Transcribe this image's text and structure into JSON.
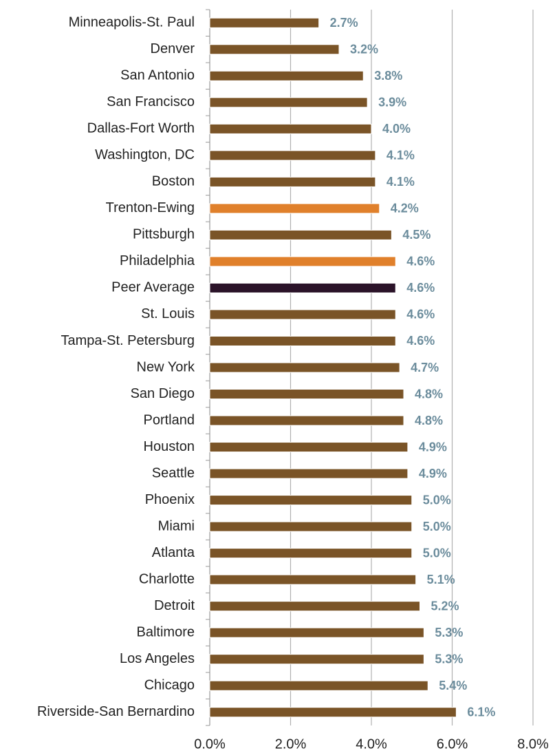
{
  "chart_data": {
    "type": "bar",
    "orientation": "horizontal",
    "categories": [
      "Minneapolis-St. Paul",
      "Denver",
      "San Antonio",
      "San Francisco",
      "Dallas-Fort Worth",
      "Washington, DC",
      "Boston",
      "Trenton-Ewing",
      "Pittsburgh",
      "Philadelphia",
      "Peer Average",
      "St. Louis",
      "Tampa-St. Petersburg",
      "New York",
      "San Diego",
      "Portland",
      "Houston",
      "Seattle",
      "Phoenix",
      "Miami",
      "Atlanta",
      "Charlotte",
      "Detroit",
      "Baltimore",
      "Los Angeles",
      "Chicago",
      "Riverside-San Bernardino"
    ],
    "values": [
      2.7,
      3.2,
      3.8,
      3.9,
      4.0,
      4.1,
      4.1,
      4.2,
      4.5,
      4.6,
      4.6,
      4.6,
      4.6,
      4.7,
      4.8,
      4.8,
      4.9,
      4.9,
      5.0,
      5.0,
      5.0,
      5.1,
      5.2,
      5.3,
      5.3,
      5.4,
      6.1
    ],
    "value_labels": [
      "2.7%",
      "3.2%",
      "3.8%",
      "3.9%",
      "4.0%",
      "4.1%",
      "4.1%",
      "4.2%",
      "4.5%",
      "4.6%",
      "4.6%",
      "4.6%",
      "4.6%",
      "4.7%",
      "4.8%",
      "4.8%",
      "4.9%",
      "4.9%",
      "5.0%",
      "5.0%",
      "5.0%",
      "5.1%",
      "5.2%",
      "5.3%",
      "5.3%",
      "5.4%",
      "6.1%"
    ],
    "colors": [
      "#7a5427",
      "#7a5427",
      "#7a5427",
      "#7a5427",
      "#7a5427",
      "#7a5427",
      "#7a5427",
      "#e0802b",
      "#7a5427",
      "#e0802b",
      "#2b1329",
      "#7a5427",
      "#7a5427",
      "#7a5427",
      "#7a5427",
      "#7a5427",
      "#7a5427",
      "#7a5427",
      "#7a5427",
      "#7a5427",
      "#7a5427",
      "#7a5427",
      "#7a5427",
      "#7a5427",
      "#7a5427",
      "#7a5427",
      "#7a5427"
    ],
    "xlim": [
      0,
      8
    ],
    "xticks": [
      {
        "value": 0,
        "label": "0.0%"
      },
      {
        "value": 2,
        "label": "2.0%"
      },
      {
        "value": 4,
        "label": "4.0%"
      },
      {
        "value": 6,
        "label": "6.0%"
      },
      {
        "value": 8,
        "label": "8.0%"
      }
    ],
    "grid": true
  }
}
